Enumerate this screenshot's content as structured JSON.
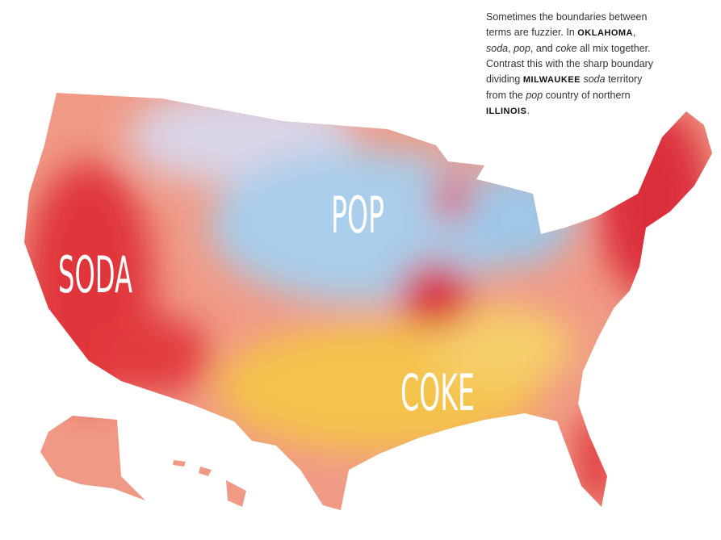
{
  "annotation": [
    "Sometimes the boundaries between terms are fuzzier. In ",
    "OKLAHOMA",
    ", ",
    "soda",
    ", ",
    "pop",
    ", and ",
    "coke",
    " all mix together. Contrast this with the sharp boundary dividing ",
    "MILWAUKEE",
    " ",
    "soda",
    " territory from the ",
    "pop",
    " country of northern ",
    "ILLINOIS",
    "."
  ],
  "labels": [
    "SODA",
    "POP",
    "COKE"
  ]
}
